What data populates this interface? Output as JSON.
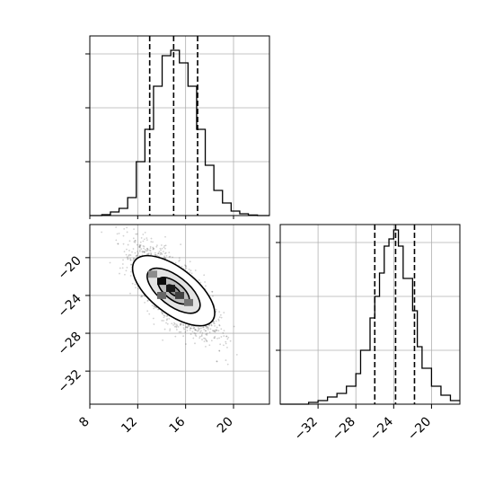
{
  "chart_data": [
    {
      "panel": "top-left",
      "type": "histogram",
      "variable": "x",
      "xlim": [
        8,
        23
      ],
      "ylim": [
        0,
        1
      ],
      "grid": true,
      "x_ticks": [
        8,
        12,
        16,
        20
      ],
      "bins": [
        {
          "x": 8.0,
          "y": 0.0
        },
        {
          "x": 9.0,
          "y": 0.005
        },
        {
          "x": 9.72,
          "y": 0.02
        },
        {
          "x": 10.44,
          "y": 0.04
        },
        {
          "x": 11.16,
          "y": 0.1
        },
        {
          "x": 11.88,
          "y": 0.3
        },
        {
          "x": 12.6,
          "y": 0.48
        },
        {
          "x": 13.32,
          "y": 0.72
        },
        {
          "x": 14.04,
          "y": 0.89
        },
        {
          "x": 14.76,
          "y": 0.92
        },
        {
          "x": 15.48,
          "y": 0.85
        },
        {
          "x": 16.2,
          "y": 0.72
        },
        {
          "x": 16.92,
          "y": 0.48
        },
        {
          "x": 17.64,
          "y": 0.28
        },
        {
          "x": 18.36,
          "y": 0.14
        },
        {
          "x": 19.08,
          "y": 0.07
        },
        {
          "x": 19.8,
          "y": 0.025
        },
        {
          "x": 20.52,
          "y": 0.01
        },
        {
          "x": 21.24,
          "y": 0.003
        },
        {
          "x": 22.0,
          "y": 0.0
        }
      ],
      "quantiles": [
        13.0,
        15.0,
        17.0
      ]
    },
    {
      "panel": "bottom-left",
      "type": "scatter-contour",
      "xlim": [
        8,
        23
      ],
      "ylim": [
        -35.5,
        -16.5
      ],
      "grid": true,
      "x_ticks": [
        8,
        12,
        16,
        20
      ],
      "y_ticks": [
        -20,
        -24,
        -28,
        -32
      ],
      "x_center": 15.0,
      "y_center": -23.5,
      "x_sd": 1.6,
      "y_sd": 2.2,
      "correlation": -0.72,
      "contour_levels": [
        2.1,
        1.35,
        0.8,
        0.35
      ],
      "density_cells": [
        {
          "x": 14.0,
          "y": -22.5,
          "shade": 0.95
        },
        {
          "x": 14.75,
          "y": -23.25,
          "shade": 0.9
        },
        {
          "x": 15.5,
          "y": -24.0,
          "shade": 0.75
        },
        {
          "x": 14.0,
          "y": -24.0,
          "shade": 0.6
        },
        {
          "x": 16.25,
          "y": -24.75,
          "shade": 0.55
        },
        {
          "x": 13.25,
          "y": -21.75,
          "shade": 0.45
        }
      ]
    },
    {
      "panel": "bottom-right",
      "type": "histogram",
      "variable": "y",
      "xlim": [
        -36,
        -17
      ],
      "ylim": [
        0,
        1
      ],
      "grid": true,
      "x_ticks": [
        -32,
        -28,
        -24,
        -20
      ],
      "bins": [
        {
          "x": -36.0,
          "y": 0.0
        },
        {
          "x": -33.0,
          "y": 0.01
        },
        {
          "x": -32.0,
          "y": 0.02
        },
        {
          "x": -31.0,
          "y": 0.04
        },
        {
          "x": -30.0,
          "y": 0.06
        },
        {
          "x": -29.0,
          "y": 0.1
        },
        {
          "x": -28.0,
          "y": 0.17
        },
        {
          "x": -27.5,
          "y": 0.3
        },
        {
          "x": -26.5,
          "y": 0.48
        },
        {
          "x": -26.0,
          "y": 0.6
        },
        {
          "x": -25.5,
          "y": 0.73
        },
        {
          "x": -25.0,
          "y": 0.88
        },
        {
          "x": -24.5,
          "y": 0.92
        },
        {
          "x": -24.0,
          "y": 0.97
        },
        {
          "x": -23.5,
          "y": 0.88
        },
        {
          "x": -23.0,
          "y": 0.7
        },
        {
          "x": -22.0,
          "y": 0.52
        },
        {
          "x": -21.5,
          "y": 0.32
        },
        {
          "x": -21.0,
          "y": 0.2
        },
        {
          "x": -20.0,
          "y": 0.1
        },
        {
          "x": -19.0,
          "y": 0.05
        },
        {
          "x": -18.0,
          "y": 0.02
        }
      ],
      "quantiles": [
        -26.0,
        -23.8,
        -21.8
      ]
    }
  ]
}
